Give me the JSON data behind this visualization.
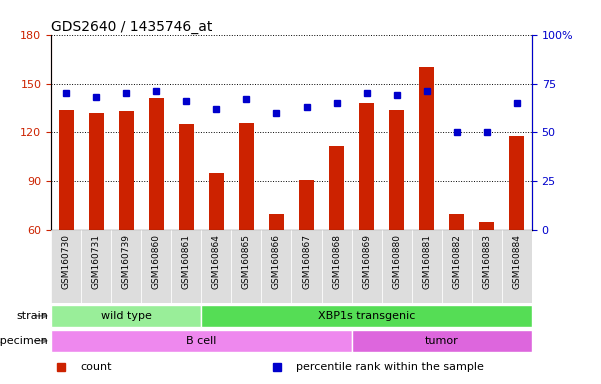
{
  "title": "GDS2640 / 1435746_at",
  "samples": [
    "GSM160730",
    "GSM160731",
    "GSM160739",
    "GSM160860",
    "GSM160861",
    "GSM160864",
    "GSM160865",
    "GSM160866",
    "GSM160867",
    "GSM160868",
    "GSM160869",
    "GSM160880",
    "GSM160881",
    "GSM160882",
    "GSM160883",
    "GSM160884"
  ],
  "counts": [
    134,
    132,
    133,
    141,
    125,
    95,
    126,
    70,
    91,
    112,
    138,
    134,
    160,
    70,
    65,
    118
  ],
  "percentiles": [
    70,
    68,
    70,
    71,
    66,
    62,
    67,
    60,
    63,
    65,
    70,
    69,
    71,
    50,
    50,
    65
  ],
  "ylim_left": [
    60,
    180
  ],
  "ylim_right": [
    0,
    100
  ],
  "yticks_left": [
    60,
    90,
    120,
    150,
    180
  ],
  "yticks_right": [
    0,
    25,
    50,
    75,
    100
  ],
  "yticklabels_right": [
    "0",
    "25",
    "50",
    "75",
    "100%"
  ],
  "bar_color": "#CC2200",
  "dot_color": "#0000CC",
  "bar_bottom": 60,
  "strain_groups": [
    {
      "label": "wild type",
      "start": 0,
      "end": 5,
      "color": "#99EE99"
    },
    {
      "label": "XBP1s transgenic",
      "start": 5,
      "end": 16,
      "color": "#55DD55"
    }
  ],
  "specimen_groups": [
    {
      "label": "B cell",
      "start": 0,
      "end": 10,
      "color": "#EE88EE"
    },
    {
      "label": "tumor",
      "start": 10,
      "end": 16,
      "color": "#DD66DD"
    }
  ],
  "legend_items": [
    {
      "label": "count",
      "color": "#CC2200"
    },
    {
      "label": "percentile rank within the sample",
      "color": "#0000CC"
    }
  ],
  "bar_width": 0.5,
  "title_fontsize": 10,
  "axis_label_color_left": "#CC2200",
  "axis_label_color_right": "#0000CC",
  "grid_color": "black",
  "grid_linestyle": "dotted",
  "tick_label_bg": "#DDDDDD",
  "tick_label_fontsize": 6.5
}
